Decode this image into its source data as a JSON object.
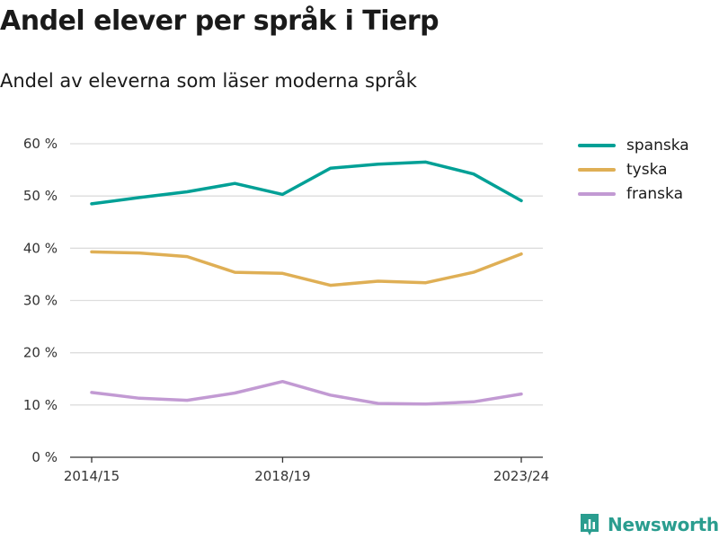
{
  "title": "Andel elever per språk i Tierp",
  "subtitle": "Andel av eleverna som läser moderna språk",
  "brand": {
    "name": "Newsworthy",
    "icon": "newsworthy-logo-icon",
    "color": "#2a9d8f"
  },
  "chart_data": {
    "type": "line",
    "title": "Andel elever per språk i Tierp",
    "subtitle": "Andel av eleverna som läser moderna språk",
    "xlabel": "",
    "ylabel": "",
    "x": [
      "2014/15",
      "2015/16",
      "2016/17",
      "2017/18",
      "2018/19",
      "2019/20",
      "2020/21",
      "2021/22",
      "2022/23",
      "2023/24"
    ],
    "x_tick_labels": [
      "2014/15",
      "2018/19",
      "2023/24"
    ],
    "y_ticks": [
      0,
      10,
      20,
      30,
      40,
      50,
      60
    ],
    "y_tick_labels": [
      "0 %",
      "10 %",
      "20 %",
      "30 %",
      "40 %",
      "50 %",
      "60 %"
    ],
    "ylim": [
      0,
      60
    ],
    "grid": true,
    "legend_position": "top-right",
    "series": [
      {
        "name": "spanska",
        "color": "#00a096",
        "values": [
          48.5,
          49.7,
          50.8,
          52.4,
          50.3,
          55.3,
          56.1,
          56.5,
          54.2,
          49.1
        ]
      },
      {
        "name": "tyska",
        "color": "#dfaf55",
        "values": [
          39.3,
          39.1,
          38.4,
          35.4,
          35.2,
          32.9,
          33.7,
          33.4,
          35.4,
          38.9
        ]
      },
      {
        "name": "franska",
        "color": "#c29ad3",
        "values": [
          12.4,
          11.3,
          10.9,
          12.3,
          14.5,
          11.9,
          10.3,
          10.2,
          10.6,
          12.1
        ]
      }
    ]
  }
}
